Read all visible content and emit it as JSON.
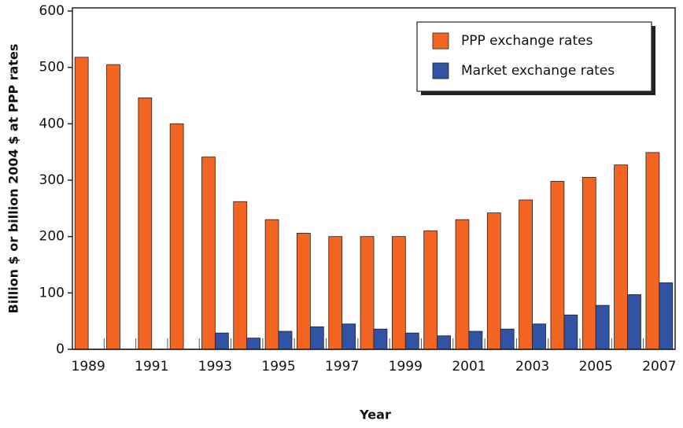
{
  "chart_data": {
    "type": "bar",
    "categories": [
      "1989",
      null,
      "1991",
      null,
      "1993",
      null,
      "1995",
      null,
      "1997",
      null,
      "1999",
      null,
      "2001",
      null,
      "2003",
      null,
      "2005",
      null,
      "2007"
    ],
    "series": [
      {
        "name": "PPP exchange rates",
        "color": "#f26522",
        "values": [
          518,
          505,
          446,
          400,
          341,
          262,
          230,
          206,
          200,
          200,
          200,
          210,
          230,
          242,
          265,
          298,
          305,
          327,
          349
        ]
      },
      {
        "name": "Market exchange rates",
        "color": "#3153a4",
        "values": [
          null,
          null,
          null,
          null,
          29,
          20,
          32,
          40,
          45,
          36,
          29,
          24,
          32,
          36,
          45,
          61,
          78,
          97,
          118
        ]
      }
    ],
    "x_label": "Year",
    "y_label": "Billion $ or billion 2004 $ at PPP rates",
    "ylim": [
      0,
      600
    ],
    "yticks": [
      0,
      100,
      200,
      300,
      400,
      500,
      600
    ],
    "legend": "top-right"
  }
}
